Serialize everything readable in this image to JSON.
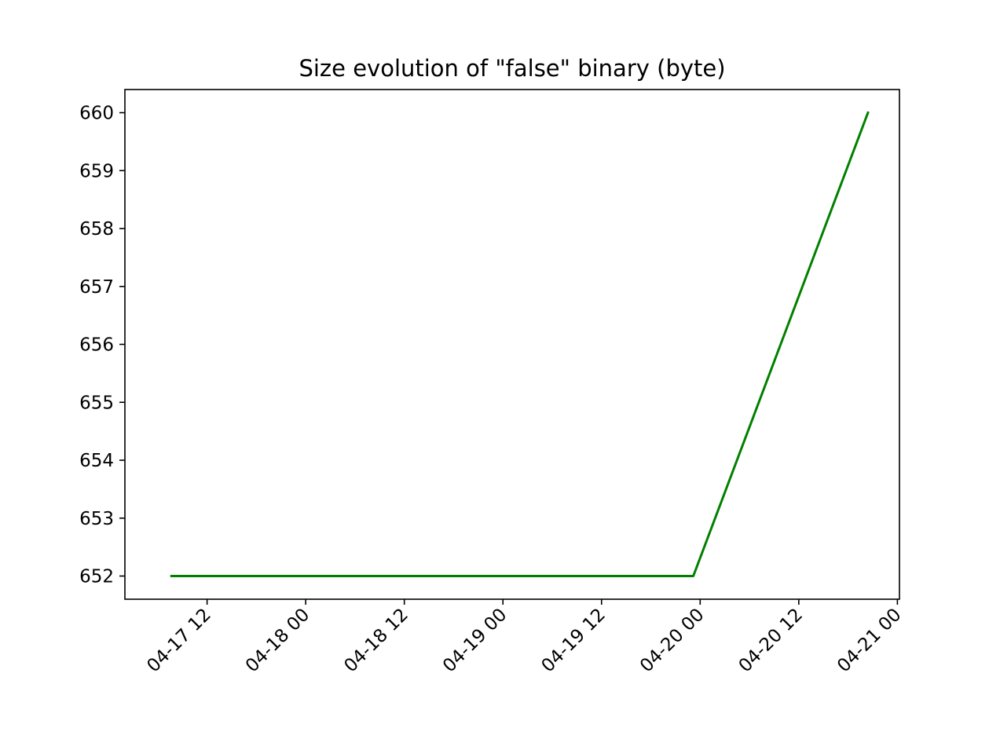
{
  "chart_data": {
    "type": "line",
    "title": "Size evolution of \"false\" binary (byte)",
    "xlabel": "",
    "ylabel": "",
    "x_tick_labels": [
      "04-17 12",
      "04-18 00",
      "04-18 12",
      "04-19 00",
      "04-19 12",
      "04-20 00",
      "04-20 12",
      "04-21 00"
    ],
    "x_tick_values": [
      "2017-04-17 12:00",
      "2017-04-18 00:00",
      "2017-04-18 12:00",
      "2017-04-19 00:00",
      "2017-04-19 12:00",
      "2017-04-20 00:00",
      "2017-04-20 12:00",
      "2017-04-21 00:00"
    ],
    "xlim": [
      "2017-04-17 02:00",
      "2017-04-21 00:15"
    ],
    "y_tick_labels": [
      "652",
      "653",
      "654",
      "655",
      "656",
      "657",
      "658",
      "659",
      "660"
    ],
    "ylim": [
      651.6,
      660.4
    ],
    "grid": false,
    "series": [
      {
        "color": "#008000",
        "points": [
          {
            "x": "2017-04-17 07:40",
            "y": 652
          },
          {
            "x": "2017-04-19 23:10",
            "y": 652
          },
          {
            "x": "2017-04-20 20:25",
            "y": 660
          }
        ]
      }
    ]
  }
}
